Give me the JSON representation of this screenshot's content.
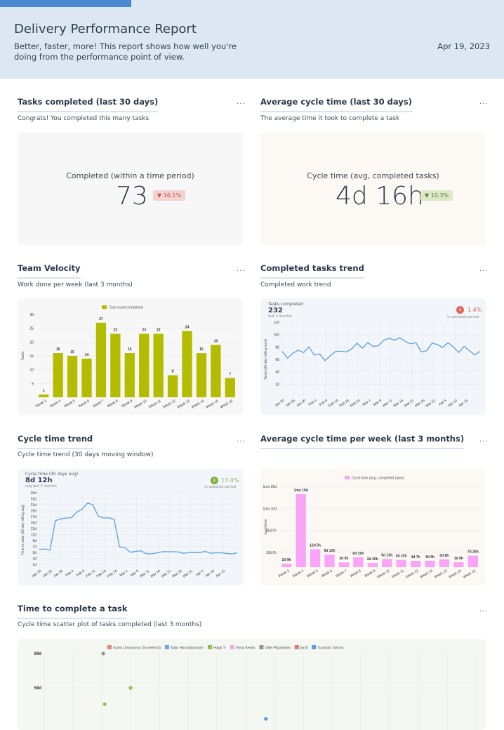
{
  "header": {
    "title": "Delivery Performance Report",
    "subtitle": "Better, faster, more! This report shows how well you're doing from the performance point of view.",
    "date": "Apr 19, 2023"
  },
  "colors": {
    "accent": "#4a88cf",
    "header_bg": "#dce7f3",
    "velocity_bar": "#b3bc00",
    "line": "#5a9ee0",
    "cycle_bar": "#f9a4f7",
    "down_bad": "#d9685a",
    "down_good": "#7cb342"
  },
  "sections": {
    "tasks_completed": {
      "title": "Tasks completed (last 30 days)",
      "subtitle": "Congrats! You completed this many tasks",
      "more": "...",
      "kpi_label": "Completed (within a time period)",
      "kpi_value": "73",
      "change": "▼ 16.1%"
    },
    "avg_cycle": {
      "title": "Average cycle time (last 30 days)",
      "subtitle": "The average time it took to complete a task",
      "more": "...",
      "kpi_label": "Cycle time (avg, completed tasks)",
      "kpi_value": "4d 16h",
      "change": "▼ 10.3%"
    },
    "velocity": {
      "title": "Team Velocity",
      "subtitle": "Work done per week (last 3 months)",
      "more": "..."
    },
    "completed_trend": {
      "title": "Completed tasks trend",
      "subtitle": "Completed work trend",
      "more": "...",
      "stat_label": "Tasks completed",
      "stat_value": "232",
      "stat_sub": "last 3 months",
      "change": "1.4%",
      "change_sub": "in selected period"
    },
    "cycle_trend": {
      "title": "Cycle time trend",
      "subtitle": "Cycle time trend (30 days moving window)",
      "more": "...",
      "stat_label": "Cycle time (30 days avg)",
      "stat_value": "8d 12h",
      "stat_sub": "avg last 3 months",
      "change": "17.4%",
      "change_sub": "in selected period"
    },
    "cycle_week": {
      "title": "Average cycle time per week (last 3 months)",
      "subtitle": "",
      "more": "..."
    },
    "scatter": {
      "title": "Time to complete a task",
      "subtitle": "Cycle time scatter plot of tasks completed (last 3 months)",
      "more": "..."
    }
  },
  "chart_data": [
    {
      "id": "velocity",
      "type": "bar",
      "legend": "Task count completed",
      "ylabel": "Tasks",
      "ylim": [
        0,
        30
      ],
      "yticks": [
        5,
        10,
        15,
        20,
        25,
        30
      ],
      "grid": true,
      "legend_position": "top",
      "categories": [
        "Week 3",
        "Week 4",
        "Week 5",
        "Week 6",
        "Week 7",
        "Week 8",
        "Week 9",
        "Week 10",
        "Week 11",
        "Week 12",
        "Week 13",
        "Week 14",
        "Week 15",
        "Week 16"
      ],
      "values": [
        1,
        16,
        15,
        14,
        27,
        23,
        16,
        23,
        23,
        8,
        24,
        16,
        19,
        7
      ]
    },
    {
      "id": "completed_trend",
      "type": "line",
      "ylabel": "Tasks (30 day rolling sum)",
      "ylim": [
        0,
        120
      ],
      "yticks": [
        20,
        40,
        60,
        80,
        100,
        120
      ],
      "grid": true,
      "xticks": [
        "Jan 20",
        "Jan 25",
        "Jan 30",
        "Feb 4",
        "Feb 9",
        "Feb 14",
        "Feb 19",
        "Feb 24",
        "Mar 1",
        "Mar 6",
        "Mar 11",
        "Mar 16",
        "Mar 21",
        "Mar 26",
        "Mar 31",
        "Apr 5",
        "Apr 10",
        "Apr 15"
      ],
      "values": [
        73,
        62,
        70,
        75,
        71,
        80,
        67,
        69,
        58,
        66,
        73,
        73,
        72,
        77,
        86,
        78,
        87,
        81,
        82,
        91,
        94,
        91,
        95,
        89,
        85,
        87,
        72,
        74,
        86,
        84,
        79,
        87,
        80,
        71,
        81,
        74,
        67,
        73
      ]
    },
    {
      "id": "cycle_trend",
      "type": "line",
      "ylabel": "Time in state (30 day rolling avg)",
      "ylim": [
        0,
        25
      ],
      "yticks": [
        "1d",
        "3d",
        "5d",
        "7d",
        "9d",
        "11d",
        "13d",
        "15d",
        "17d",
        "19d",
        "21d",
        "23d",
        "25d"
      ],
      "ytick_values": [
        1,
        3,
        5,
        7,
        9,
        11,
        13,
        15,
        17,
        19,
        21,
        23,
        25
      ],
      "grid": true,
      "xticks": [
        "Jan 20",
        "Jan 25",
        "Jan 30",
        "Feb 4",
        "Feb 9",
        "Feb 14",
        "Feb 19",
        "Feb 24",
        "Mar 1",
        "Mar 6",
        "Mar 11",
        "Mar 16",
        "Mar 21",
        "Mar 26",
        "Mar 31",
        "Apr 5",
        "Apr 10",
        "Apr 15"
      ],
      "values": [
        6,
        6.1,
        5.7,
        15.6,
        16.2,
        16.5,
        16.6,
        18.5,
        19.5,
        21.5,
        21,
        17.2,
        16.5,
        16.6,
        16,
        6.8,
        6.6,
        5,
        5.3,
        5.5,
        4.5,
        4.5,
        4.8,
        5.2,
        5.2,
        5.2,
        5.1,
        4.6,
        5,
        4.9,
        4.9,
        5.3,
        4.7,
        4.8,
        4.8,
        4.6,
        4.4,
        4.8
      ]
    },
    {
      "id": "cycle_week",
      "type": "bar",
      "legend": "Cycle time (avg, completed tasks)",
      "ylabel": "Lead time",
      "ylim": [
        0,
        55
      ],
      "yticks": [
        "10d 0h",
        "25d 0h",
        "1mo 10d",
        "1mo 25d"
      ],
      "ytick_values": [
        10,
        25,
        40,
        55
      ],
      "grid": true,
      "legend_position": "top",
      "categories": [
        "Week 3",
        "Week 4",
        "Week 5",
        "Week 6",
        "Week 7",
        "Week 8",
        "Week 9",
        "Week 10",
        "Week 11",
        "Week 12",
        "Week 13",
        "Week 14",
        "Week 15",
        "Week 16"
      ],
      "values": [
        2.375,
        49.8,
        12.2,
        8.5,
        3.25,
        6.8,
        2.83,
        5.54,
        4.92,
        4.3,
        4.4,
        5.33,
        3.375,
        7.83
      ],
      "labels": [
        "2d 9h",
        "1mo 19d",
        "12d 5h",
        "8d 12h",
        "3d 6h",
        "6d 19h",
        "2d 20h",
        "5d 13h",
        "4d 22h",
        "4d 7h",
        "4d 9h",
        "5d 8h",
        "3d 9h",
        "7d 20h"
      ]
    },
    {
      "id": "scatter",
      "type": "scatter",
      "yticks": [
        "69d",
        "58d"
      ],
      "ytick_values": [
        69,
        58
      ],
      "grid": true,
      "legend_position": "top",
      "series": [
        {
          "name": "Sami Linnanvuo (Screenful)",
          "color": "#d98b80"
        },
        {
          "name": "Nairi Haroutiounian",
          "color": "#6fa8e0"
        },
        {
          "name": "Hayk Y",
          "color": "#8bc34a"
        },
        {
          "name": "Vova Kenih",
          "color": "#e7b3e0"
        },
        {
          "name": "Ville Piiparinen",
          "color": "#8f959b"
        },
        {
          "name": "jordi",
          "color": "#e07a70"
        },
        {
          "name": "Tuomas Tammi",
          "color": "#5a9ee0"
        }
      ],
      "points": [
        {
          "series": 4,
          "x": 2.05,
          "y": 69
        },
        {
          "series": 2,
          "x": 3.0,
          "y": 58
        },
        {
          "series": 2,
          "x": 2.1,
          "y": 52.8
        },
        {
          "series": 6,
          "x": 7.7,
          "y": 48.1
        }
      ]
    }
  ]
}
